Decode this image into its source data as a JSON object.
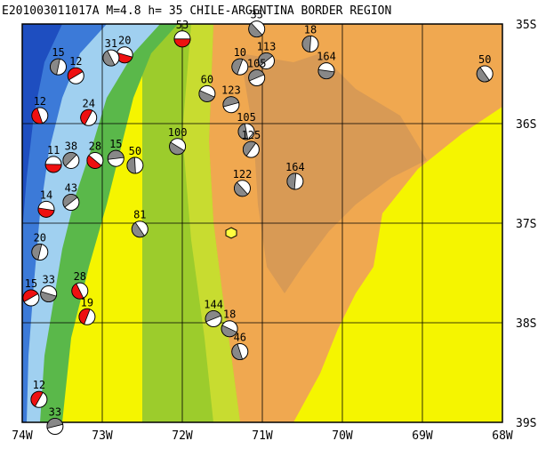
{
  "title": "E201003011017A  M=4.8  h= 35  CHILE-ARGENTINA BORDER REGION",
  "map": {
    "lonlim": [
      -74,
      -68
    ],
    "latlim": [
      -35,
      -39
    ],
    "lon_ticks": [
      {
        "value": -74,
        "label": "74W"
      },
      {
        "value": -73,
        "label": "73W"
      },
      {
        "value": -72,
        "label": "72W"
      },
      {
        "value": -71,
        "label": "71W"
      },
      {
        "value": -70,
        "label": "70W"
      },
      {
        "value": -69,
        "label": "69W"
      },
      {
        "value": -68,
        "label": "68W"
      }
    ],
    "lat_ticks": [
      {
        "value": -35,
        "label": "35S"
      },
      {
        "value": -36,
        "label": "36S"
      },
      {
        "value": -37,
        "label": "37S"
      },
      {
        "value": -38,
        "label": "38S"
      },
      {
        "value": -39,
        "label": "39S"
      }
    ],
    "events": [
      {
        "label": "53",
        "lon": -72.0,
        "lat": -35.15,
        "color": "red"
      },
      {
        "label": "35",
        "lon": -71.07,
        "lat": -35.05,
        "color": "gray"
      },
      {
        "label": "18",
        "lon": -70.4,
        "lat": -35.2,
        "color": "gray"
      },
      {
        "label": "113",
        "lon": -70.95,
        "lat": -35.37,
        "color": "gray"
      },
      {
        "label": "164",
        "lon": -70.2,
        "lat": -35.47,
        "color": "gray"
      },
      {
        "label": "50",
        "lon": -68.22,
        "lat": -35.5,
        "color": "gray"
      },
      {
        "label": "15",
        "lon": -73.55,
        "lat": -35.43,
        "color": "gray"
      },
      {
        "label": "12",
        "lon": -73.33,
        "lat": -35.52,
        "color": "red"
      },
      {
        "label": "20",
        "lon": -72.72,
        "lat": -35.31,
        "color": "red"
      },
      {
        "label": "31",
        "lon": -72.89,
        "lat": -35.34,
        "color": "gray"
      },
      {
        "label": "10",
        "lon": -71.28,
        "lat": -35.43,
        "color": "gray"
      },
      {
        "label": "105",
        "lon": -71.07,
        "lat": -35.54,
        "color": "gray"
      },
      {
        "label": "60",
        "lon": -71.69,
        "lat": -35.7,
        "color": "gray"
      },
      {
        "label": "12",
        "lon": -73.78,
        "lat": -35.92,
        "color": "red"
      },
      {
        "label": "24",
        "lon": -73.17,
        "lat": -35.94,
        "color": "red"
      },
      {
        "label": "123",
        "lon": -71.39,
        "lat": -35.81,
        "color": "gray"
      },
      {
        "label": "100",
        "lon": -72.06,
        "lat": -36.23,
        "color": "gray"
      },
      {
        "label": "105",
        "lon": -71.2,
        "lat": -36.08,
        "color": "gray"
      },
      {
        "label": "125",
        "lon": -71.14,
        "lat": -36.26,
        "color": "gray"
      },
      {
        "label": "15",
        "lon": -72.83,
        "lat": -36.35,
        "color": "gray"
      },
      {
        "label": "28",
        "lon": -73.09,
        "lat": -36.37,
        "color": "red"
      },
      {
        "label": "50",
        "lon": -72.59,
        "lat": -36.42,
        "color": "gray"
      },
      {
        "label": "38",
        "lon": -73.39,
        "lat": -36.37,
        "color": "gray"
      },
      {
        "label": "11",
        "lon": -73.61,
        "lat": -36.41,
        "color": "red"
      },
      {
        "label": "122",
        "lon": -71.25,
        "lat": -36.65,
        "color": "gray"
      },
      {
        "label": "164",
        "lon": -70.59,
        "lat": -36.58,
        "color": "gray"
      },
      {
        "label": "43",
        "lon": -73.39,
        "lat": -36.79,
        "color": "gray"
      },
      {
        "label": "14",
        "lon": -73.7,
        "lat": -36.86,
        "color": "red"
      },
      {
        "label": "81",
        "lon": -72.53,
        "lat": -37.06,
        "color": "gray"
      },
      {
        "label": "20",
        "lon": -73.78,
        "lat": -37.29,
        "color": "gray"
      },
      {
        "label": "15",
        "lon": -73.89,
        "lat": -37.75,
        "color": "red"
      },
      {
        "label": "33",
        "lon": -73.67,
        "lat": -37.71,
        "color": "gray"
      },
      {
        "label": "28",
        "lon": -73.28,
        "lat": -37.68,
        "color": "red"
      },
      {
        "label": "19",
        "lon": -73.19,
        "lat": -37.94,
        "color": "red"
      },
      {
        "label": "144",
        "lon": -71.61,
        "lat": -37.96,
        "color": "gray"
      },
      {
        "label": "18",
        "lon": -71.41,
        "lat": -38.06,
        "color": "gray"
      },
      {
        "label": "46",
        "lon": -71.28,
        "lat": -38.29,
        "color": "gray"
      },
      {
        "label": "12",
        "lon": -73.79,
        "lat": -38.77,
        "color": "red"
      },
      {
        "label": "33",
        "lon": -73.59,
        "lat": -39.04,
        "color": "gray"
      }
    ]
  }
}
